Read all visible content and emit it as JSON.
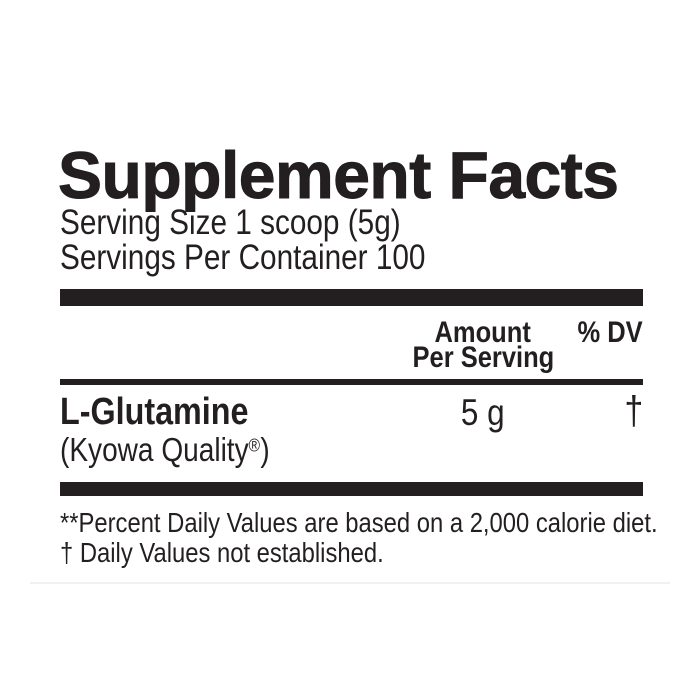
{
  "label": {
    "title": "Supplement Facts",
    "serving_size": "Serving Size 1 scoop (5g)",
    "servings_per_container": "Servings Per Container 100",
    "columns": {
      "amount": [
        "Amount",
        "Per Serving"
      ],
      "daily_value": "% DV"
    },
    "ingredients": [
      {
        "name": "L-Glutamine",
        "brand_note": "(Kyowa Quality",
        "brand_note_mark": "®",
        "brand_note_close": ")",
        "amount": "5 g",
        "daily_value": "†"
      }
    ],
    "footnotes": [
      "**Percent Daily Values are based on a 2,000 calorie diet.",
      "† Daily Values not established."
    ],
    "colors": {
      "ink": "#231f20",
      "background": "#ffffff"
    }
  }
}
